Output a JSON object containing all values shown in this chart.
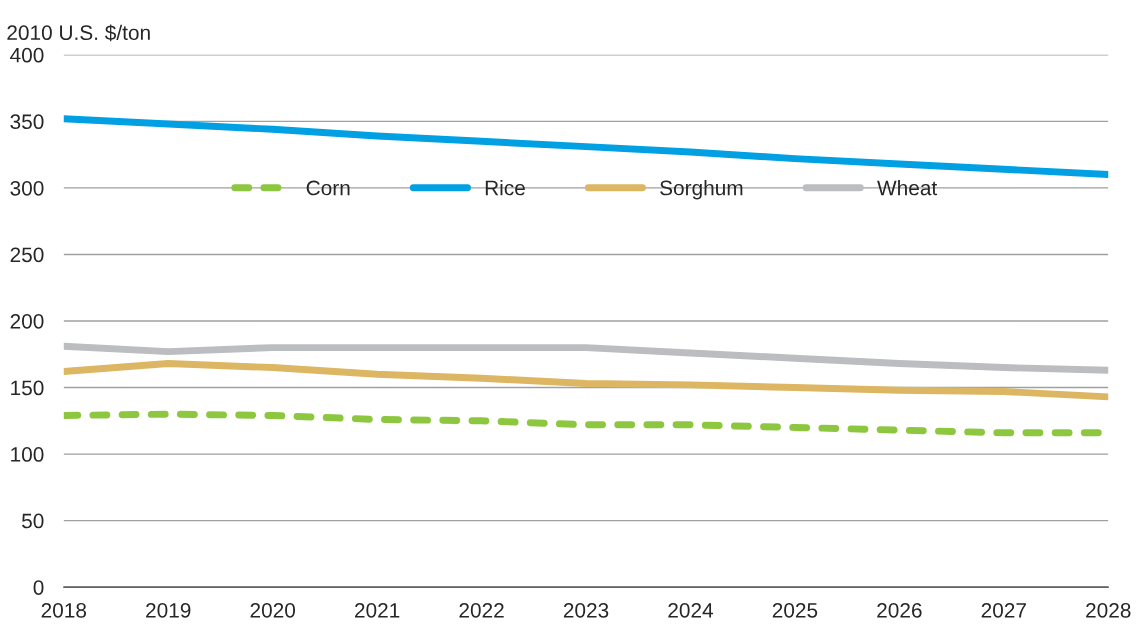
{
  "chart_data": {
    "type": "line",
    "ylabel": "2010 U.S. $/ton",
    "categories": [
      "2018",
      "2019",
      "2020",
      "2021",
      "2022",
      "2023",
      "2024",
      "2025",
      "2026",
      "2027",
      "2028"
    ],
    "series": [
      {
        "name": "Corn",
        "color": "#8dc63f",
        "line_style": "dashed",
        "values": [
          129,
          130,
          129,
          126,
          125,
          122,
          122,
          120,
          118,
          116,
          116
        ]
      },
      {
        "name": "Rice",
        "color": "#00a0e3",
        "line_style": "solid",
        "values": [
          352,
          348,
          344,
          339,
          335,
          331,
          327,
          322,
          318,
          314,
          310
        ]
      },
      {
        "name": "Sorghum",
        "color": "#dcb662",
        "line_style": "solid",
        "values": [
          162,
          168,
          165,
          160,
          157,
          153,
          152,
          150,
          148,
          147,
          143
        ]
      },
      {
        "name": "Wheat",
        "color": "#bcbdc0",
        "line_style": "solid",
        "values": [
          181,
          177,
          180,
          180,
          180,
          180,
          176,
          172,
          168,
          165,
          163
        ]
      }
    ],
    "ylim": [
      0,
      400
    ],
    "yticks": [
      0,
      50,
      100,
      150,
      200,
      250,
      300,
      350,
      400
    ],
    "grid": "y",
    "legend": "top",
    "marker": "none"
  }
}
